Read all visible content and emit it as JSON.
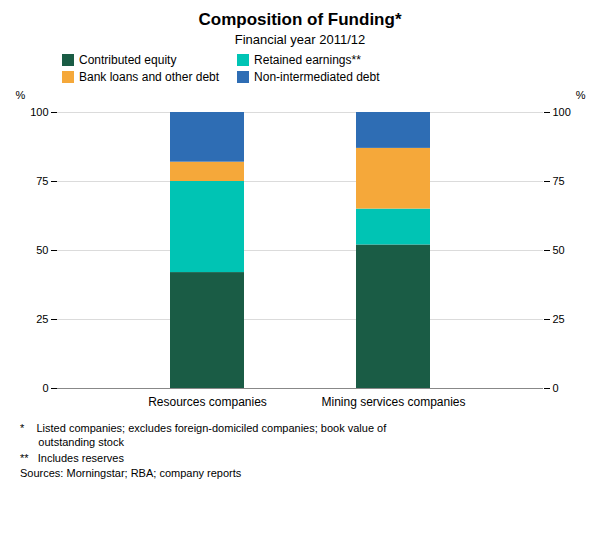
{
  "chart_data": {
    "type": "bar",
    "stacked": true,
    "title": "Composition of Funding*",
    "subtitle": "Financial year 2011/12",
    "categories": [
      "Resources companies",
      "Mining services companies"
    ],
    "series": [
      {
        "name": "Contributed equity",
        "color": "#1a5c45",
        "values": [
          42,
          52
        ]
      },
      {
        "name": "Retained earnings**",
        "color": "#00c4b4",
        "values": [
          33,
          13
        ]
      },
      {
        "name": "Bank loans and other debt",
        "color": "#f5a83a",
        "values": [
          7,
          22
        ]
      },
      {
        "name": "Non-intermediated debt",
        "color": "#2e6db4",
        "values": [
          18,
          13
        ]
      }
    ],
    "ylabel": "%",
    "ylim": [
      0,
      100
    ],
    "yticks": [
      0,
      25,
      50,
      75,
      100
    ],
    "y2label": "%",
    "y2lim": [
      0,
      100
    ],
    "y2ticks": [
      0,
      25,
      50,
      75,
      100
    ],
    "grid": true,
    "legend": "upper left",
    "annotations": [
      "*    Listed companies; excludes foreign-domiciled companies; book value of\n      outstanding stock",
      "**   Includes reserves",
      "Sources: Morningstar; RBA; company reports"
    ]
  }
}
